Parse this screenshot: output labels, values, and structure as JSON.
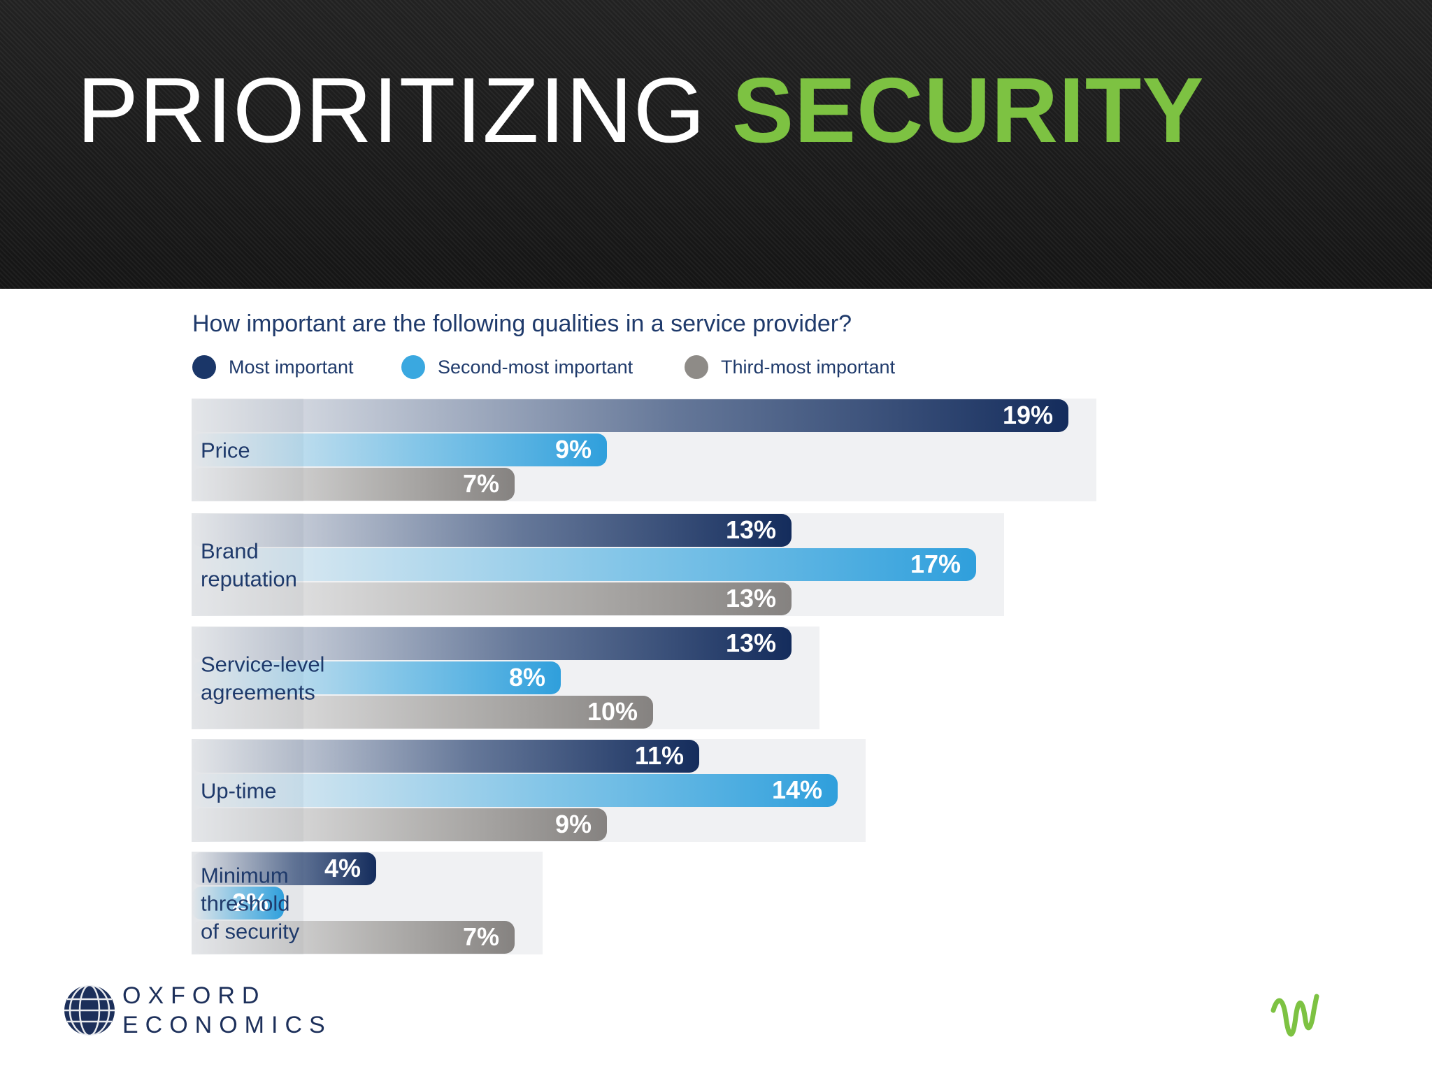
{
  "header": {
    "title_main": "PRIORITIZING ",
    "title_accent": "SECURITY"
  },
  "colors": {
    "accent": "#7dc242",
    "most": "#1a3668",
    "second": "#3aa8e0",
    "third": "#8e8b87",
    "band": "#e4e6e9"
  },
  "chart_data": {
    "type": "bar",
    "orientation": "horizontal",
    "title": "How important are the following qualities in a service provider?",
    "categories": [
      "Price",
      "Brand reputation",
      "Service-level agreements",
      "Up-time",
      "Minimum threshold of security"
    ],
    "category_lines": [
      [
        "Price"
      ],
      [
        "Brand",
        "reputation"
      ],
      [
        "Service-level",
        "agreements"
      ],
      [
        "Up-time"
      ],
      [
        "Minimum",
        "threshold",
        "of security"
      ]
    ],
    "series": [
      {
        "name": "Most important",
        "values": [
          19,
          13,
          13,
          11,
          4
        ]
      },
      {
        "name": "Second-most important",
        "values": [
          9,
          17,
          8,
          14,
          2
        ]
      },
      {
        "name": "Third-most important",
        "values": [
          7,
          13,
          10,
          9,
          7
        ]
      }
    ],
    "value_suffix": "%",
    "legend_position": "top-left",
    "grid": false
  },
  "footer": {
    "logo_line1": "OXFORD",
    "logo_line2": "ECONOMICS"
  }
}
